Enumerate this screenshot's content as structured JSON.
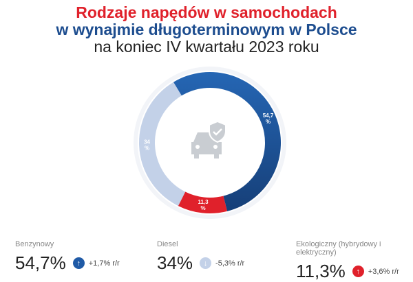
{
  "chart_data": {
    "type": "pie",
    "donut": true,
    "title": [
      "Rodzaje napędów w samochodach",
      "w wynajmie długoterminowym w Polsce",
      "na koniec IV kwartału 2023 roku"
    ],
    "slices": [
      {
        "label": "Benzynowy",
        "value": 54.7,
        "data_label": "54,7 %",
        "display": "54,7%",
        "change": "+1,7% r/r",
        "trend": "up",
        "color": "#1f5aa6"
      },
      {
        "label": "Ekologiczny (hybrydowy i elektryczny)",
        "value": 11.3,
        "data_label": "11,3 %",
        "display": "11,3%",
        "change": "+3,6% r/r",
        "trend": "up",
        "color": "#e0212b"
      },
      {
        "label": "Diesel",
        "value": 34,
        "data_label": "34 %",
        "display": "34%",
        "change": "-5,3% r/r",
        "trend": "down",
        "color": "#c3d1e8"
      }
    ],
    "center_icon": "car-shield-check-icon"
  }
}
